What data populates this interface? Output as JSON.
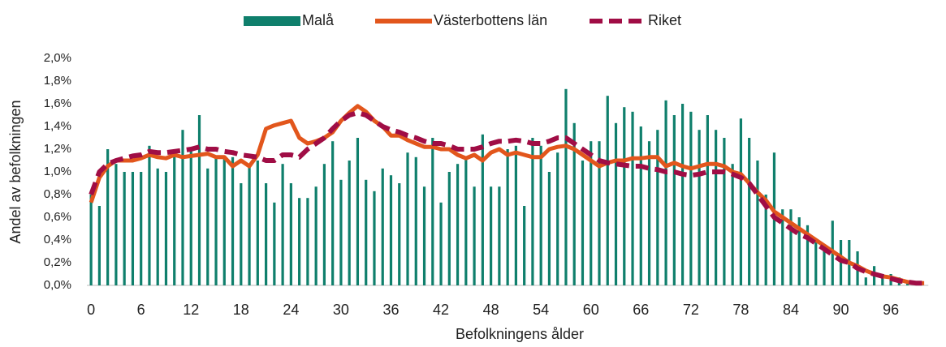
{
  "chart_data": {
    "type": "bar_line",
    "x_label": "Befolkningens ålder",
    "y_label": "Andel av befolkningen",
    "categories": [
      "0",
      null,
      null,
      null,
      null,
      null,
      "6",
      null,
      null,
      null,
      null,
      null,
      "12",
      null,
      null,
      null,
      null,
      null,
      "18",
      null,
      null,
      null,
      null,
      null,
      "24",
      null,
      null,
      null,
      null,
      null,
      "30",
      null,
      null,
      null,
      null,
      null,
      "36",
      null,
      null,
      null,
      null,
      null,
      "42",
      null,
      null,
      null,
      null,
      null,
      "48",
      null,
      null,
      null,
      null,
      null,
      "54",
      null,
      null,
      null,
      null,
      null,
      "60",
      null,
      null,
      null,
      null,
      null,
      "66",
      null,
      null,
      null,
      null,
      null,
      "72",
      null,
      null,
      null,
      null,
      null,
      "78",
      null,
      null,
      null,
      null,
      null,
      "84",
      null,
      null,
      null,
      null,
      null,
      "90",
      null,
      null,
      null,
      null,
      null,
      "96",
      null,
      null,
      null,
      null
    ],
    "series": [
      {
        "name": "Malå",
        "kind": "bar",
        "color": "#0f7f6c",
        "values": [
          0.8,
          0.7,
          1.2,
          1.07,
          1.0,
          1.0,
          1.0,
          1.23,
          1.03,
          1.0,
          1.17,
          1.37,
          1.2,
          1.5,
          1.03,
          1.13,
          1.13,
          1.13,
          0.9,
          1.07,
          1.1,
          0.9,
          0.73,
          1.07,
          0.9,
          0.77,
          0.77,
          0.87,
          1.07,
          1.27,
          0.93,
          1.1,
          1.3,
          0.93,
          0.83,
          1.03,
          0.97,
          0.9,
          1.17,
          1.13,
          0.87,
          1.3,
          0.73,
          1.0,
          1.07,
          1.13,
          0.87,
          1.33,
          0.87,
          0.87,
          1.2,
          1.23,
          0.7,
          1.3,
          1.23,
          1.0,
          1.17,
          1.73,
          1.43,
          1.1,
          1.27,
          1.27,
          1.67,
          1.43,
          1.57,
          1.53,
          1.4,
          1.27,
          1.37,
          1.63,
          1.5,
          1.6,
          1.53,
          1.37,
          1.5,
          1.37,
          1.3,
          1.07,
          1.47,
          1.3,
          1.1,
          0.8,
          1.17,
          0.67,
          0.67,
          0.6,
          0.53,
          0.4,
          0.33,
          0.57,
          0.4,
          0.4,
          0.3,
          0.07,
          0.17,
          0.07,
          0.1,
          0.07,
          0.03,
          0.03,
          0.0
        ]
      },
      {
        "name": "Västerbottens län",
        "kind": "line",
        "color": "#e2561c",
        "values": [
          0.73,
          0.95,
          1.05,
          1.1,
          1.1,
          1.1,
          1.12,
          1.15,
          1.13,
          1.12,
          1.15,
          1.13,
          1.14,
          1.15,
          1.16,
          1.13,
          1.13,
          1.05,
          1.1,
          1.05,
          1.15,
          1.38,
          1.41,
          1.43,
          1.45,
          1.3,
          1.25,
          1.27,
          1.3,
          1.35,
          1.45,
          1.52,
          1.58,
          1.53,
          1.45,
          1.4,
          1.32,
          1.32,
          1.28,
          1.25,
          1.22,
          1.22,
          1.2,
          1.2,
          1.15,
          1.12,
          1.15,
          1.1,
          1.17,
          1.2,
          1.15,
          1.17,
          1.15,
          1.13,
          1.13,
          1.2,
          1.22,
          1.23,
          1.2,
          1.15,
          1.1,
          1.05,
          1.08,
          1.1,
          1.1,
          1.12,
          1.12,
          1.13,
          1.13,
          1.05,
          1.08,
          1.05,
          1.03,
          1.05,
          1.07,
          1.07,
          1.05,
          1.0,
          0.98,
          0.9,
          0.82,
          0.75,
          0.65,
          0.6,
          0.55,
          0.5,
          0.45,
          0.4,
          0.35,
          0.3,
          0.25,
          0.2,
          0.17,
          0.13,
          0.1,
          0.08,
          0.07,
          0.05,
          0.03,
          0.02,
          0.02
        ]
      },
      {
        "name": "Riket",
        "kind": "line",
        "dashed": true,
        "color": "#a00d45",
        "values": [
          0.8,
          1.0,
          1.07,
          1.1,
          1.12,
          1.14,
          1.15,
          1.18,
          1.17,
          1.17,
          1.18,
          1.19,
          1.2,
          1.22,
          1.2,
          1.2,
          1.18,
          1.17,
          1.15,
          1.14,
          1.13,
          1.1,
          1.1,
          1.15,
          1.15,
          1.13,
          1.2,
          1.25,
          1.3,
          1.38,
          1.45,
          1.5,
          1.52,
          1.5,
          1.45,
          1.4,
          1.37,
          1.35,
          1.32,
          1.3,
          1.27,
          1.25,
          1.25,
          1.23,
          1.2,
          1.2,
          1.2,
          1.22,
          1.25,
          1.27,
          1.27,
          1.28,
          1.27,
          1.25,
          1.25,
          1.27,
          1.3,
          1.3,
          1.25,
          1.2,
          1.15,
          1.1,
          1.08,
          1.07,
          1.06,
          1.05,
          1.05,
          1.03,
          1.02,
          1.0,
          1.0,
          0.98,
          0.97,
          0.98,
          1.0,
          1.0,
          1.0,
          0.98,
          0.95,
          0.9,
          0.8,
          0.7,
          0.6,
          0.55,
          0.5,
          0.45,
          0.42,
          0.37,
          0.32,
          0.27,
          0.22,
          0.2,
          0.15,
          0.12,
          0.1,
          0.08,
          0.06,
          0.04,
          0.03,
          0.02,
          0.02
        ]
      }
    ],
    "ylim": [
      0,
      2.0
    ],
    "yticks": [
      {
        "value": 0,
        "label": "0,0%"
      },
      {
        "value": 0.2,
        "label": "0,2%"
      },
      {
        "value": 0.4,
        "label": "0,4%"
      },
      {
        "value": 0.6,
        "label": "0,6%"
      },
      {
        "value": 0.8,
        "label": "0,8%"
      },
      {
        "value": 1.0,
        "label": "1,0%"
      },
      {
        "value": 1.2,
        "label": "1,2%"
      },
      {
        "value": 1.4,
        "label": "1,4%"
      },
      {
        "value": 1.6,
        "label": "1,6%"
      },
      {
        "value": 1.8,
        "label": "1,8%"
      },
      {
        "value": 2.0,
        "label": "2,0%"
      }
    ],
    "legend": "top",
    "grid": false
  }
}
